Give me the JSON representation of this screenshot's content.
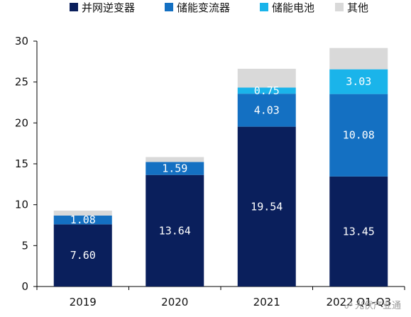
{
  "chart_data": {
    "type": "bar",
    "stacked": true,
    "categories": [
      "2019",
      "2020",
      "2021",
      "2022 Q1-Q3"
    ],
    "series": [
      {
        "name": "并网逆变器",
        "color": "#0a1f5c",
        "values": [
          7.6,
          13.64,
          19.54,
          13.45
        ],
        "labels": [
          "7.60",
          "13.64",
          "19.54",
          "13.45"
        ]
      },
      {
        "name": "储能变流器",
        "color": "#1470c2",
        "values": [
          1.08,
          1.59,
          4.03,
          10.08
        ],
        "labels": [
          "1.08",
          "1.59",
          "4.03",
          "10.08"
        ]
      },
      {
        "name": "储能电池",
        "color": "#1ab4ea",
        "values": [
          0,
          0,
          0.75,
          3.03
        ],
        "labels": [
          "",
          "",
          "0.75",
          "3.03"
        ]
      },
      {
        "name": "其他",
        "color": "#d9d9d9",
        "values": [
          0.6,
          0.6,
          2.3,
          2.6
        ],
        "labels": [
          "",
          "",
          "",
          ""
        ]
      }
    ],
    "ylim": [
      0,
      30
    ],
    "yticks": [
      0,
      5,
      10,
      15,
      20,
      25,
      30
    ],
    "grid": false,
    "legend_position": "top"
  },
  "watermark": {
    "icon": "wechat-icon",
    "text": "光伏产业通"
  }
}
